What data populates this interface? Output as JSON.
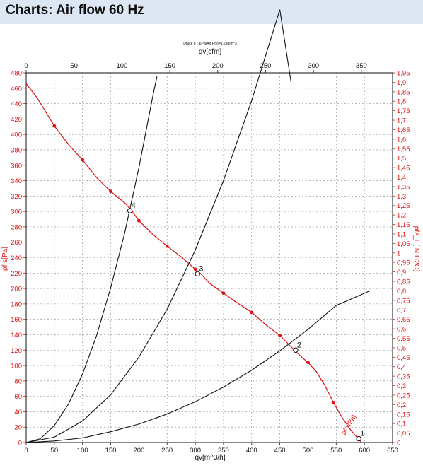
{
  "page": {
    "title": "Charts: Air flow 60 Hz"
  },
  "chart_data": {
    "type": "line",
    "subtitle": "Druck p f.a[Pa]Air Rho=1.2kg/m^3",
    "xlabel": "qv[m^3/h]",
    "x2label": "qv[cfm]",
    "ylabel": "pf s[Pa]",
    "y2label": "pfs_E[IN H2O]",
    "xlim": [
      0,
      650
    ],
    "x2lim": [
      0,
      382.6
    ],
    "ylim": [
      0,
      480
    ],
    "y2lim": [
      0,
      1.95
    ],
    "grid": true,
    "x_ticks": [
      "0",
      "50",
      "100",
      "150",
      "200",
      "250",
      "300",
      "350",
      "400",
      "450",
      "500",
      "550",
      "600",
      "650"
    ],
    "x2_ticks": [
      "0",
      "50",
      "100",
      "150",
      "200",
      "250",
      "300",
      "350"
    ],
    "y_ticks": [
      "0",
      "20",
      "40",
      "60",
      "80",
      "100",
      "120",
      "140",
      "160",
      "180",
      "200",
      "220",
      "240",
      "260",
      "280",
      "300",
      "320",
      "340",
      "360",
      "380",
      "400",
      "420",
      "440",
      "460",
      "480"
    ],
    "y2_ticks": [
      "0",
      "0,05",
      "0,1",
      "0,15",
      "0,2",
      "0,25",
      "0,3",
      "0,35",
      "0,4",
      "0,45",
      "0,5",
      "0,55",
      "0,6",
      "0,65",
      "0,7",
      "0,75",
      "0,8",
      "0,85",
      "0,9",
      "0,95",
      "1",
      "1,05",
      "1,1",
      "1,15",
      "1,2",
      "1,25",
      "1,3",
      "1,35",
      "1,4",
      "1,45",
      "1,5",
      "1,55",
      "1,6",
      "1,65",
      "1,7",
      "1,75",
      "1,8",
      "1,85",
      "1,9",
      "1,95"
    ],
    "series": [
      {
        "color": "#e01010",
        "x": [
          0,
          20,
          50,
          75,
          100,
          125,
          150,
          175,
          187,
          200,
          225,
          250,
          275,
          300,
          310,
          325,
          350,
          375,
          400,
          425,
          450,
          465,
          480,
          490,
          500,
          515,
          530,
          545,
          560,
          575,
          590,
          595
        ],
        "y": [
          466,
          447,
          411,
          387,
          367,
          344,
          326,
          311,
          301,
          288,
          270,
          255,
          241,
          225,
          219,
          207,
          194,
          181,
          169,
          153,
          139,
          128,
          117,
          110,
          104,
          92,
          74,
          52,
          33,
          17,
          4,
          0
        ],
        "markers_x": [
          50,
          100,
          150,
          200,
          250,
          300,
          350,
          400,
          450,
          500,
          545
        ],
        "markers_y": [
          411,
          367,
          326,
          288,
          255,
          225,
          194,
          169,
          139,
          104,
          52
        ]
      },
      {
        "color": "#111111",
        "x": [
          0,
          25,
          50,
          75,
          100,
          125,
          150,
          175,
          200,
          225,
          232
        ],
        "y": [
          0,
          5,
          22,
          50,
          89,
          139,
          201,
          273,
          357,
          451,
          475
        ]
      },
      {
        "color": "#111111",
        "x": [
          0,
          50,
          100,
          150,
          200,
          250,
          300,
          350,
          400,
          450,
          470
        ],
        "y": [
          0,
          7,
          28,
          62,
          111,
          173,
          250,
          340,
          444,
          562,
          467
        ]
      },
      {
        "color": "#111111",
        "x": [
          0,
          50,
          100,
          150,
          200,
          250,
          300,
          350,
          400,
          450,
          500,
          550,
          610
        ],
        "y": [
          0,
          2,
          6,
          14,
          24,
          37,
          53,
          72,
          94,
          119,
          147,
          178,
          197
        ]
      }
    ],
    "operating_points": [
      {
        "label": "4",
        "x": 184,
        "y": 301
      },
      {
        "label": "3",
        "x": 304,
        "y": 219
      },
      {
        "label": "2",
        "x": 478,
        "y": 120
      },
      {
        "label": "1",
        "x": 590,
        "y": 5
      }
    ],
    "curve_label": "pf s[Pa]"
  }
}
